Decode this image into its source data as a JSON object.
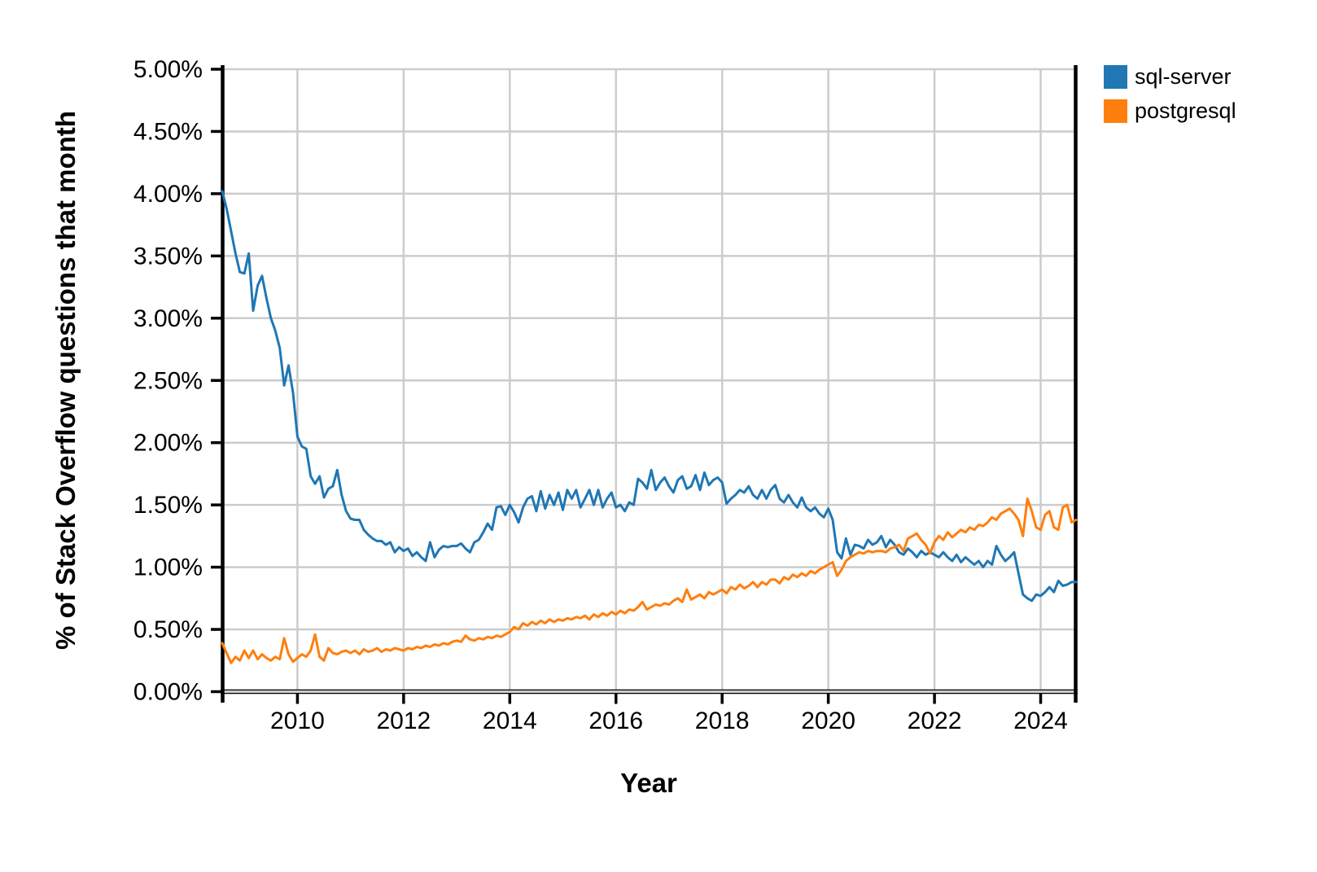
{
  "chart_data": {
    "type": "line",
    "title": "",
    "xlabel": "Year",
    "ylabel": "% of Stack Overflow questions that month",
    "xlim": [
      2008.583,
      2024.667
    ],
    "ylim": [
      0,
      5
    ],
    "grid": true,
    "background_color": "#ffffff",
    "grid_color": "#cccccc",
    "spine_color": "#000000",
    "legend_position": "outside-upper-right",
    "x_unit": "decimal_year_monthly",
    "x_start": 2008.583,
    "x_step": 0.0833333,
    "xtick_values": [
      2010,
      2012,
      2014,
      2016,
      2018,
      2020,
      2022,
      2024
    ],
    "xtick_labels": [
      "2010",
      "2012",
      "2014",
      "2016",
      "2018",
      "2020",
      "2022",
      "2024"
    ],
    "ytick_values": [
      0,
      0.5,
      1.0,
      1.5,
      2.0,
      2.5,
      3.0,
      3.5,
      4.0,
      4.5,
      5.0
    ],
    "ytick_labels": [
      "0.00%",
      "0.50%",
      "1.00%",
      "1.50%",
      "2.00%",
      "2.50%",
      "3.00%",
      "3.50%",
      "4.00%",
      "4.50%",
      "5.00%"
    ],
    "series": [
      {
        "name": "sql-server",
        "color": "#1f77b4",
        "values": [
          4.02,
          3.88,
          3.7,
          3.52,
          3.37,
          3.36,
          3.52,
          3.06,
          3.26,
          3.34,
          3.16,
          3.0,
          2.9,
          2.76,
          2.46,
          2.62,
          2.4,
          2.05,
          1.97,
          1.95,
          1.73,
          1.67,
          1.73,
          1.56,
          1.63,
          1.65,
          1.78,
          1.58,
          1.45,
          1.39,
          1.38,
          1.38,
          1.3,
          1.26,
          1.23,
          1.21,
          1.21,
          1.18,
          1.2,
          1.12,
          1.16,
          1.13,
          1.15,
          1.09,
          1.12,
          1.08,
          1.05,
          1.2,
          1.08,
          1.14,
          1.17,
          1.16,
          1.17,
          1.17,
          1.19,
          1.15,
          1.12,
          1.2,
          1.22,
          1.28,
          1.35,
          1.3,
          1.48,
          1.49,
          1.42,
          1.5,
          1.44,
          1.36,
          1.48,
          1.55,
          1.57,
          1.45,
          1.61,
          1.47,
          1.58,
          1.5,
          1.6,
          1.46,
          1.62,
          1.55,
          1.62,
          1.48,
          1.55,
          1.62,
          1.5,
          1.62,
          1.48,
          1.55,
          1.6,
          1.48,
          1.5,
          1.45,
          1.52,
          1.5,
          1.71,
          1.68,
          1.63,
          1.78,
          1.62,
          1.68,
          1.72,
          1.65,
          1.6,
          1.7,
          1.73,
          1.63,
          1.65,
          1.74,
          1.62,
          1.76,
          1.66,
          1.7,
          1.72,
          1.68,
          1.51,
          1.55,
          1.58,
          1.62,
          1.6,
          1.65,
          1.58,
          1.55,
          1.62,
          1.55,
          1.62,
          1.66,
          1.55,
          1.52,
          1.58,
          1.52,
          1.48,
          1.56,
          1.48,
          1.45,
          1.48,
          1.43,
          1.4,
          1.47,
          1.38,
          1.12,
          1.07,
          1.23,
          1.1,
          1.18,
          1.17,
          1.15,
          1.22,
          1.18,
          1.2,
          1.25,
          1.16,
          1.22,
          1.18,
          1.12,
          1.1,
          1.15,
          1.12,
          1.08,
          1.13,
          1.1,
          1.12,
          1.1,
          1.08,
          1.12,
          1.08,
          1.05,
          1.1,
          1.04,
          1.08,
          1.05,
          1.02,
          1.05,
          1.0,
          1.05,
          1.02,
          1.17,
          1.1,
          1.05,
          1.08,
          1.12,
          0.95,
          0.78,
          0.75,
          0.73,
          0.78,
          0.77,
          0.8,
          0.84,
          0.8,
          0.89,
          0.85,
          0.86,
          0.88,
          0.88
        ]
      },
      {
        "name": "postgresql",
        "color": "#ff7f0e",
        "values": [
          0.39,
          0.31,
          0.23,
          0.28,
          0.25,
          0.33,
          0.27,
          0.33,
          0.26,
          0.3,
          0.27,
          0.25,
          0.28,
          0.26,
          0.43,
          0.3,
          0.24,
          0.27,
          0.3,
          0.28,
          0.33,
          0.46,
          0.28,
          0.25,
          0.35,
          0.31,
          0.3,
          0.32,
          0.33,
          0.31,
          0.33,
          0.3,
          0.34,
          0.32,
          0.33,
          0.35,
          0.32,
          0.34,
          0.33,
          0.35,
          0.34,
          0.33,
          0.35,
          0.34,
          0.36,
          0.35,
          0.37,
          0.36,
          0.38,
          0.37,
          0.39,
          0.38,
          0.4,
          0.41,
          0.4,
          0.45,
          0.42,
          0.41,
          0.43,
          0.42,
          0.44,
          0.43,
          0.45,
          0.44,
          0.46,
          0.48,
          0.52,
          0.5,
          0.55,
          0.53,
          0.56,
          0.54,
          0.57,
          0.55,
          0.58,
          0.56,
          0.58,
          0.57,
          0.59,
          0.58,
          0.6,
          0.59,
          0.61,
          0.58,
          0.62,
          0.6,
          0.63,
          0.61,
          0.64,
          0.62,
          0.65,
          0.63,
          0.66,
          0.65,
          0.68,
          0.72,
          0.66,
          0.68,
          0.7,
          0.69,
          0.71,
          0.7,
          0.73,
          0.75,
          0.72,
          0.82,
          0.74,
          0.76,
          0.78,
          0.75,
          0.8,
          0.78,
          0.8,
          0.82,
          0.79,
          0.84,
          0.82,
          0.86,
          0.83,
          0.85,
          0.88,
          0.84,
          0.88,
          0.86,
          0.9,
          0.9,
          0.87,
          0.92,
          0.9,
          0.94,
          0.92,
          0.95,
          0.93,
          0.97,
          0.95,
          0.98,
          1.0,
          1.02,
          1.04,
          0.93,
          0.98,
          1.05,
          1.08,
          1.1,
          1.12,
          1.11,
          1.13,
          1.12,
          1.13,
          1.13,
          1.12,
          1.15,
          1.16,
          1.18,
          1.13,
          1.23,
          1.25,
          1.27,
          1.22,
          1.18,
          1.11,
          1.2,
          1.25,
          1.22,
          1.28,
          1.24,
          1.27,
          1.3,
          1.28,
          1.32,
          1.3,
          1.34,
          1.33,
          1.36,
          1.4,
          1.38,
          1.43,
          1.45,
          1.47,
          1.43,
          1.38,
          1.25,
          1.55,
          1.45,
          1.32,
          1.3,
          1.42,
          1.45,
          1.32,
          1.3,
          1.48,
          1.5,
          1.36,
          1.38
        ]
      }
    ]
  }
}
